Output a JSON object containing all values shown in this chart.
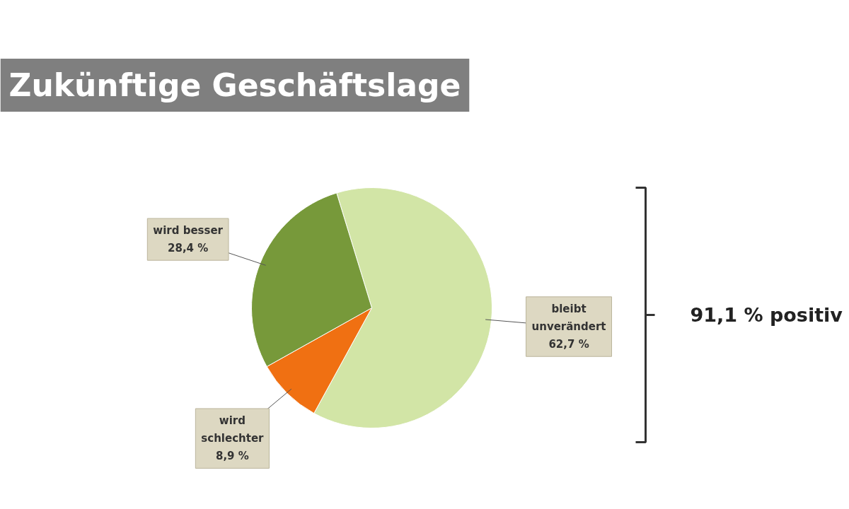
{
  "chart_data": {
    "type": "pie",
    "title": "Zukünftige Geschäftslage",
    "categories": [
      "bleibt unverändert",
      "wird schlechter",
      "wird besser"
    ],
    "values": [
      62.7,
      8.9,
      28.4
    ],
    "value_labels": [
      "62,7 %",
      "8,9 %",
      "28,4 %"
    ],
    "colors": [
      "#d2e5a6",
      "#f07012",
      "#77993a"
    ],
    "annotations": [
      "91,1 % positiv"
    ]
  }
}
